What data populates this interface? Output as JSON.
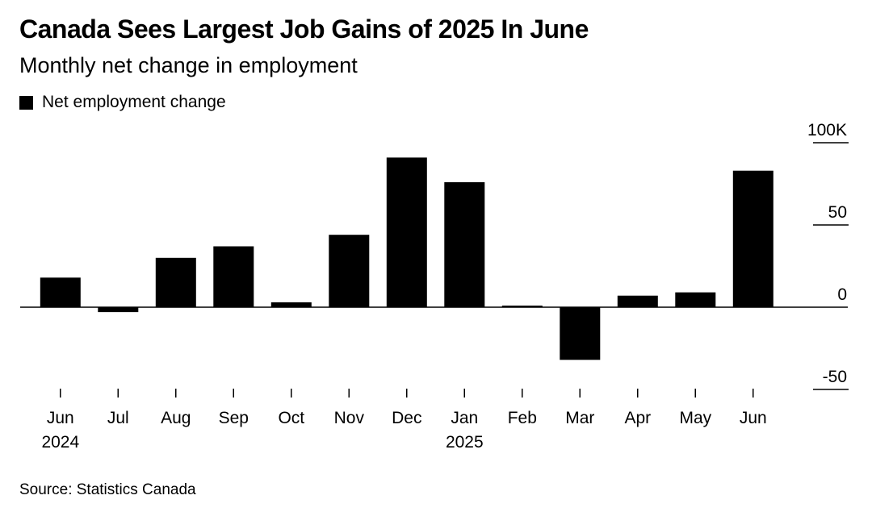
{
  "title": "Canada Sees Largest Job Gains of 2025 In June",
  "subtitle": "Monthly net change in employment",
  "legend": {
    "label": "Net employment change",
    "color": "#000000"
  },
  "source": "Source: Statistics Canada",
  "colors": {
    "bar": "#000000",
    "axis": "#000000",
    "text": "#000000",
    "background": "#ffffff"
  },
  "chart_data": {
    "type": "bar",
    "title": "Canada Sees Largest Job Gains of 2025 In June",
    "subtitle": "Monthly net change in employment",
    "xlabel": "",
    "ylabel": "",
    "categories": [
      "Jun 2024",
      "Jul",
      "Aug",
      "Sep",
      "Oct",
      "Nov",
      "Dec",
      "Jan 2025",
      "Feb",
      "Mar",
      "Apr",
      "May",
      "Jun"
    ],
    "x_tick_labels": [
      {
        "line1": "Jun",
        "line2": "2024"
      },
      {
        "line1": "Jul",
        "line2": ""
      },
      {
        "line1": "Aug",
        "line2": ""
      },
      {
        "line1": "Sep",
        "line2": ""
      },
      {
        "line1": "Oct",
        "line2": ""
      },
      {
        "line1": "Nov",
        "line2": ""
      },
      {
        "line1": "Dec",
        "line2": ""
      },
      {
        "line1": "Jan",
        "line2": "2025"
      },
      {
        "line1": "Feb",
        "line2": ""
      },
      {
        "line1": "Mar",
        "line2": ""
      },
      {
        "line1": "Apr",
        "line2": ""
      },
      {
        "line1": "May",
        "line2": ""
      },
      {
        "line1": "Jun",
        "line2": ""
      }
    ],
    "series": [
      {
        "name": "Net employment change",
        "values": [
          18,
          -3,
          30,
          37,
          3,
          44,
          91,
          76,
          1,
          -32,
          7,
          9,
          83
        ]
      }
    ],
    "ylim": [
      -50,
      100
    ],
    "y_ticks": [
      {
        "value": 100,
        "label": "100K"
      },
      {
        "value": 50,
        "label": "50"
      },
      {
        "value": 0,
        "label": "0"
      },
      {
        "value": -50,
        "label": "-50"
      }
    ],
    "grid": false,
    "legend_position": "top-left",
    "y_axis_position": "right"
  }
}
